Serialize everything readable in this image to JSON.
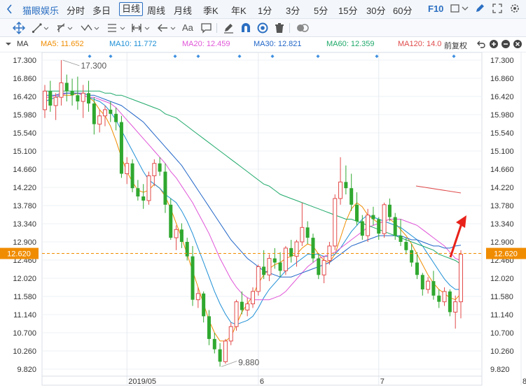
{
  "header": {
    "stock_name": "猫眼娱乐",
    "periods": [
      {
        "label": "分时",
        "active": false
      },
      {
        "label": "多日",
        "active": false
      },
      {
        "label": "日线",
        "active": true
      },
      {
        "label": "周线",
        "active": false
      },
      {
        "label": "月线",
        "active": false
      },
      {
        "label": "季K",
        "active": false
      },
      {
        "label": "年K",
        "active": false
      },
      {
        "label": "1分",
        "active": false
      },
      {
        "label": "3分",
        "active": false
      },
      {
        "label": "5分",
        "active": false
      },
      {
        "label": "15分",
        "active": false
      },
      {
        "label": "30分",
        "active": false
      },
      {
        "label": "60分",
        "active": false
      }
    ],
    "f10_label": "F10",
    "tool_text_label": "Aa"
  },
  "ma_legend": {
    "ma_label": "MA",
    "items": [
      {
        "label": "MA5: 11.652",
        "color": "#f08c00"
      },
      {
        "label": "MA10: 11.772",
        "color": "#1e8fd6"
      },
      {
        "label": "MA20: 12.459",
        "color": "#e055d8"
      },
      {
        "label": "MA30: 12.821",
        "color": "#2266c8"
      },
      {
        "label": "MA60: 12.359",
        "color": "#1fa96a"
      },
      {
        "label": "MA120: 14.0",
        "color": "#e04a4a"
      }
    ],
    "adjust_label": "前复权"
  },
  "colors": {
    "up": "#e34a4a",
    "down": "#2fa82f",
    "current_price_bg": "#f08c00",
    "arrow": "#e8221a"
  },
  "chart_data": {
    "type": "candlestick",
    "ylim": [
      9.82,
      17.3
    ],
    "y_ticks": [
      "17.300",
      "16.860",
      "16.420",
      "15.980",
      "15.540",
      "15.100",
      "14.660",
      "14.220",
      "13.780",
      "13.340",
      "12.900",
      "12.460",
      "12.020",
      "11.580",
      "11.140",
      "10.700",
      "10.260",
      "9.820"
    ],
    "x_ticks": [
      "2019/05",
      "6",
      "7",
      "8"
    ],
    "current_price": "12.620",
    "annotations": {
      "high": "17.300",
      "low": "9.880"
    },
    "series_colors": {
      "MA5": "#f08c00",
      "MA10": "#1e8fd6",
      "MA20": "#e055d8",
      "MA30": "#2266c8",
      "MA60": "#1fa96a",
      "MA120": "#e04a4a"
    },
    "candles": [
      [
        16.1,
        16.7,
        15.9,
        16.55
      ],
      [
        16.55,
        16.8,
        16.05,
        16.2
      ],
      [
        16.2,
        16.5,
        15.85,
        16.4
      ],
      [
        16.4,
        17.3,
        16.2,
        16.75
      ],
      [
        16.75,
        16.95,
        16.3,
        16.55
      ],
      [
        16.55,
        16.85,
        16.2,
        16.45
      ],
      [
        16.45,
        16.9,
        16.1,
        16.3
      ],
      [
        16.3,
        16.7,
        15.9,
        16.5
      ],
      [
        16.5,
        16.8,
        16.05,
        16.25
      ],
      [
        16.25,
        16.4,
        15.5,
        15.75
      ],
      [
        15.75,
        16.1,
        15.55,
        15.95
      ],
      [
        15.95,
        16.2,
        15.7,
        16.1
      ],
      [
        16.1,
        16.3,
        15.8,
        16.0
      ],
      [
        16.0,
        16.15,
        15.6,
        15.8
      ],
      [
        15.8,
        15.95,
        14.45,
        14.55
      ],
      [
        14.55,
        14.95,
        14.3,
        14.8
      ],
      [
        14.8,
        14.9,
        14.1,
        14.2
      ],
      [
        14.2,
        14.4,
        13.9,
        14.0
      ],
      [
        14.0,
        14.3,
        13.7,
        13.9
      ],
      [
        13.9,
        14.6,
        13.8,
        14.5
      ],
      [
        14.5,
        14.9,
        14.25,
        14.8
      ],
      [
        14.8,
        14.95,
        14.5,
        14.6
      ],
      [
        14.6,
        14.8,
        13.6,
        13.8
      ],
      [
        13.8,
        13.95,
        12.95,
        13.0
      ],
      [
        13.0,
        13.3,
        12.7,
        13.2
      ],
      [
        13.2,
        13.35,
        12.75,
        12.9
      ],
      [
        12.9,
        13.0,
        12.45,
        12.55
      ],
      [
        12.55,
        12.8,
        11.35,
        11.5
      ],
      [
        11.5,
        11.8,
        11.3,
        11.65
      ],
      [
        11.65,
        11.7,
        10.95,
        11.1
      ],
      [
        11.1,
        11.25,
        10.4,
        10.55
      ],
      [
        10.55,
        10.7,
        10.2,
        10.3
      ],
      [
        10.3,
        10.45,
        9.88,
        10.0
      ],
      [
        10.0,
        10.55,
        9.95,
        10.5
      ],
      [
        10.5,
        10.95,
        10.4,
        10.85
      ],
      [
        10.85,
        11.5,
        10.75,
        11.45
      ],
      [
        11.45,
        11.7,
        11.15,
        11.25
      ],
      [
        11.25,
        11.55,
        11.1,
        11.4
      ],
      [
        11.4,
        11.8,
        11.3,
        11.7
      ],
      [
        11.7,
        12.35,
        11.6,
        12.3
      ],
      [
        12.3,
        12.7,
        12.0,
        12.1
      ],
      [
        12.1,
        12.6,
        11.95,
        12.5
      ],
      [
        12.5,
        12.75,
        12.25,
        12.4
      ],
      [
        12.4,
        12.65,
        12.05,
        12.2
      ],
      [
        12.2,
        12.8,
        12.1,
        12.75
      ],
      [
        12.75,
        12.95,
        12.4,
        12.55
      ],
      [
        12.55,
        12.95,
        12.3,
        12.9
      ],
      [
        12.9,
        13.85,
        12.8,
        13.25
      ],
      [
        13.25,
        13.4,
        12.85,
        13.0
      ],
      [
        13.0,
        13.1,
        12.4,
        12.5
      ],
      [
        12.5,
        12.6,
        12.0,
        12.1
      ],
      [
        12.1,
        12.55,
        11.9,
        12.45
      ],
      [
        12.45,
        12.9,
        12.35,
        12.8
      ],
      [
        12.8,
        14.05,
        12.7,
        13.95
      ],
      [
        13.95,
        14.95,
        13.8,
        14.35
      ],
      [
        14.35,
        14.75,
        14.05,
        14.2
      ],
      [
        14.2,
        14.55,
        13.65,
        13.8
      ],
      [
        13.8,
        14.1,
        13.3,
        13.4
      ],
      [
        13.4,
        13.55,
        12.95,
        13.05
      ],
      [
        13.05,
        13.7,
        12.9,
        13.55
      ],
      [
        13.55,
        13.75,
        13.3,
        13.45
      ],
      [
        13.45,
        13.5,
        12.95,
        13.1
      ],
      [
        13.1,
        13.85,
        13.0,
        13.8
      ],
      [
        13.8,
        13.95,
        13.4,
        13.5
      ],
      [
        13.5,
        13.6,
        12.95,
        13.05
      ],
      [
        13.05,
        13.45,
        12.8,
        12.9
      ],
      [
        12.9,
        13.0,
        12.6,
        12.7
      ],
      [
        12.7,
        12.85,
        12.3,
        12.4
      ],
      [
        12.4,
        12.65,
        12.0,
        12.1
      ],
      [
        12.1,
        12.15,
        11.6,
        11.75
      ],
      [
        11.75,
        12.05,
        11.65,
        11.95
      ],
      [
        11.95,
        12.2,
        11.5,
        11.6
      ],
      [
        11.6,
        11.75,
        11.3,
        11.45
      ],
      [
        11.45,
        11.8,
        11.35,
        11.7
      ],
      [
        11.7,
        11.75,
        11.1,
        11.2
      ],
      [
        11.2,
        11.6,
        10.8,
        11.45
      ],
      [
        11.45,
        12.7,
        11.05,
        12.6
      ]
    ],
    "x_tick_index": [
      15,
      39,
      61,
      87
    ],
    "ma_series": {
      "MA5": [
        16.3,
        16.35,
        16.4,
        16.45,
        16.45,
        16.45,
        16.5,
        16.45,
        16.4,
        16.3,
        16.1,
        15.95,
        15.7,
        15.35,
        14.95,
        14.6,
        14.35,
        14.15,
        14.1,
        14.15,
        14.3,
        14.2,
        14.0,
        13.7,
        13.35,
        13.0,
        12.6,
        12.2,
        11.8,
        11.4,
        11.0,
        10.7,
        10.5,
        10.5,
        10.6,
        10.9,
        11.2,
        11.4,
        11.6,
        11.9,
        12.1,
        12.25,
        12.35,
        12.4,
        12.5,
        12.55,
        12.6,
        12.75,
        12.85,
        12.8,
        12.6,
        12.45,
        12.4,
        12.6,
        13.0,
        13.4,
        13.7,
        13.85,
        13.75,
        13.55,
        13.45,
        13.35,
        13.4,
        13.45,
        13.35,
        13.2,
        13.05,
        12.85,
        12.6,
        12.35,
        12.1,
        11.9,
        11.75,
        11.65,
        11.55,
        11.5,
        11.65
      ],
      "MA10": [
        16.3,
        16.35,
        16.4,
        16.45,
        16.5,
        16.5,
        16.5,
        16.45,
        16.4,
        16.35,
        16.3,
        16.2,
        16.05,
        15.85,
        15.6,
        15.35,
        15.1,
        14.85,
        14.6,
        14.4,
        14.3,
        14.2,
        14.05,
        13.95,
        13.85,
        13.65,
        13.4,
        13.1,
        12.75,
        12.4,
        12.05,
        11.7,
        11.4,
        11.15,
        10.95,
        10.9,
        10.95,
        11.0,
        11.1,
        11.3,
        11.55,
        11.75,
        11.9,
        12.05,
        12.2,
        12.3,
        12.4,
        12.5,
        12.6,
        12.6,
        12.6,
        12.55,
        12.55,
        12.6,
        12.75,
        12.95,
        13.15,
        13.3,
        13.45,
        13.55,
        13.5,
        13.45,
        13.4,
        13.35,
        13.3,
        13.25,
        13.15,
        13.05,
        12.95,
        12.8,
        12.6,
        12.4,
        12.2,
        12.0,
        11.85,
        11.75,
        11.75
      ],
      "MA20": [
        16.4,
        16.4,
        16.45,
        16.45,
        16.5,
        16.5,
        16.5,
        16.45,
        16.4,
        16.4,
        16.35,
        16.3,
        16.25,
        16.15,
        16.0,
        15.85,
        15.7,
        15.55,
        15.4,
        15.25,
        15.1,
        14.95,
        14.8,
        14.6,
        14.45,
        14.25,
        14.05,
        13.85,
        13.6,
        13.35,
        13.1,
        12.8,
        12.5,
        12.25,
        12.0,
        11.8,
        11.65,
        11.55,
        11.5,
        11.5,
        11.5,
        11.5,
        11.55,
        11.6,
        11.7,
        11.85,
        12.0,
        12.15,
        12.3,
        12.4,
        12.5,
        12.55,
        12.6,
        12.65,
        12.75,
        12.85,
        12.95,
        13.05,
        13.15,
        13.25,
        13.3,
        13.35,
        13.4,
        13.45,
        13.45,
        13.45,
        13.4,
        13.35,
        13.3,
        13.2,
        13.1,
        13.0,
        12.9,
        12.8,
        12.65,
        12.5,
        12.45
      ],
      "MA30": [
        16.45,
        16.45,
        16.45,
        16.5,
        16.5,
        16.5,
        16.5,
        16.5,
        16.45,
        16.45,
        16.4,
        16.35,
        16.3,
        16.25,
        16.2,
        16.1,
        16.0,
        15.9,
        15.8,
        15.65,
        15.5,
        15.35,
        15.2,
        15.05,
        14.9,
        14.75,
        14.55,
        14.35,
        14.15,
        13.95,
        13.75,
        13.55,
        13.35,
        13.15,
        12.95,
        12.8,
        12.65,
        12.5,
        12.4,
        12.3,
        12.2,
        12.15,
        12.1,
        12.05,
        12.05,
        12.05,
        12.1,
        12.15,
        12.2,
        12.25,
        12.3,
        12.35,
        12.4,
        12.5,
        12.6,
        12.7,
        12.8,
        12.85,
        12.9,
        12.95,
        13.0,
        13.05,
        13.05,
        13.05,
        13.05,
        13.05,
        13.0,
        12.95,
        12.95,
        12.9,
        12.85,
        12.8,
        12.8,
        12.75,
        12.75,
        12.8,
        12.82
      ],
      "MA60": [
        16.55,
        16.55,
        16.55,
        16.55,
        16.55,
        16.55,
        16.55,
        16.55,
        16.55,
        16.55,
        16.55,
        16.5,
        16.5,
        16.45,
        16.45,
        16.4,
        16.35,
        16.3,
        16.25,
        16.2,
        16.15,
        16.1,
        16.0,
        15.95,
        15.9,
        15.8,
        15.7,
        15.6,
        15.5,
        15.4,
        15.3,
        15.2,
        15.1,
        15.0,
        14.9,
        14.8,
        14.7,
        14.6,
        14.5,
        14.4,
        14.3,
        14.25,
        14.15,
        14.05,
        14.0,
        13.95,
        13.9,
        13.85,
        13.8,
        13.75,
        13.7,
        13.65,
        13.6,
        13.55,
        13.5,
        13.45,
        13.45,
        13.4,
        13.35,
        13.3,
        13.25,
        13.2,
        13.15,
        13.1,
        13.05,
        13.0,
        12.95,
        12.9,
        12.85,
        12.8,
        12.75,
        12.7,
        12.6,
        12.55,
        12.5,
        12.45,
        12.36
      ],
      "MA120": [
        null,
        null,
        null,
        null,
        null,
        null,
        null,
        null,
        null,
        null,
        null,
        null,
        null,
        null,
        null,
        null,
        null,
        null,
        null,
        null,
        null,
        null,
        null,
        null,
        null,
        null,
        null,
        null,
        null,
        null,
        null,
        null,
        null,
        null,
        null,
        null,
        null,
        null,
        null,
        null,
        null,
        null,
        null,
        null,
        null,
        null,
        null,
        null,
        null,
        null,
        null,
        null,
        null,
        null,
        null,
        null,
        null,
        null,
        null,
        null,
        null,
        null,
        null,
        null,
        null,
        null,
        null,
        14.2,
        14.18,
        14.16,
        14.14,
        14.12,
        14.1,
        14.08,
        14.06,
        14.04,
        14.02
      ]
    }
  }
}
